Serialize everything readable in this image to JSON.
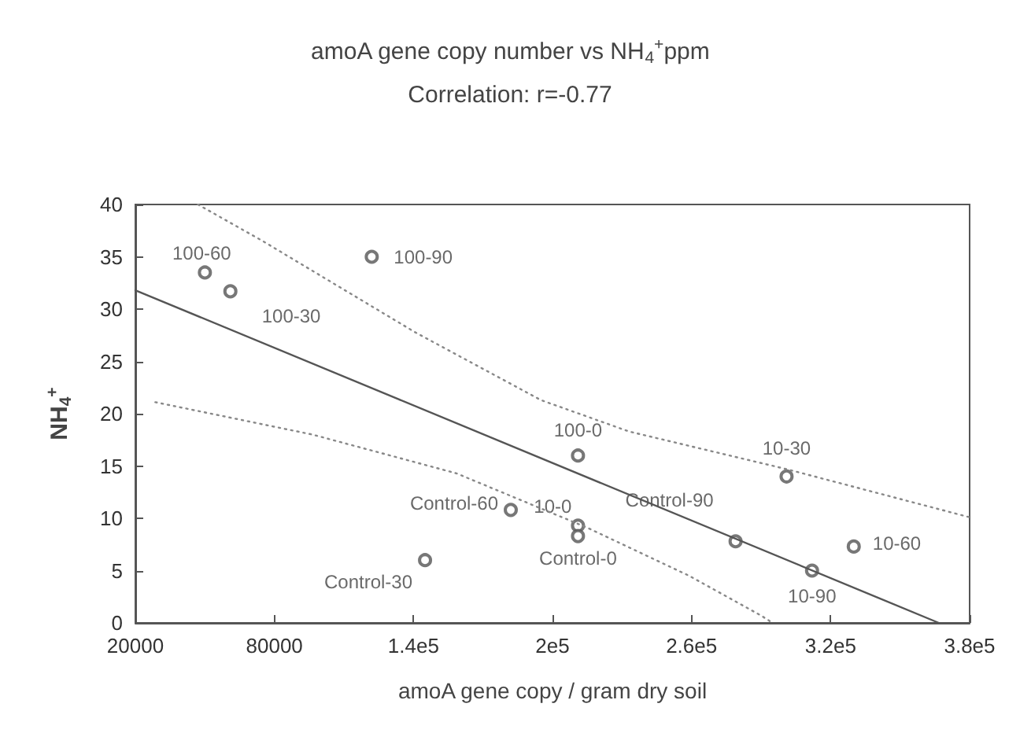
{
  "chart_data": {
    "type": "scatter",
    "title": "amoA gene copy number vs NH$_{4}$$^{+}$ppm",
    "subtitle": "Correlation: r=-0.77",
    "xlabel": "amoA gene copy / gram dry soil",
    "ylabel": "NH$_{4}$$^{+}$",
    "xlim": [
      20000,
      380000
    ],
    "xticks": [
      20000,
      80000,
      {
        "value": 140000,
        "label": "1.4e5"
      },
      {
        "value": 200000,
        "label": "2e5"
      },
      {
        "value": 260000,
        "label": "2.6e5"
      },
      {
        "value": 320000,
        "label": "3.2e5"
      },
      {
        "value": 380000,
        "label": "3.8e5"
      }
    ],
    "ylim": [
      0,
      40
    ],
    "yticks": [
      0,
      5,
      10,
      15,
      20,
      25,
      30,
      35,
      40
    ],
    "grid": false,
    "marker": "circle",
    "series": [
      {
        "color": "#555555",
        "x": [
          50000,
          61000,
          122000,
          182000,
          211000,
          211000,
          211000,
          301000,
          279000,
          312000,
          330000,
          145000
        ],
        "values": [
          33.5,
          31.7,
          35,
          10.8,
          16,
          9.3,
          8.3,
          14,
          7.8,
          5,
          7.3,
          6
        ]
      },
      {
        "type": "line",
        "color": "#555555",
        "line_style": "solid",
        "marker": "none",
        "x": [
          20000,
          366700
        ],
        "values": [
          31.8,
          0
        ]
      },
      {
        "type": "line",
        "color": "#888888",
        "line_style": "dotted",
        "marker": "none",
        "x": [
          47000,
          75000,
          140600,
          195000,
          233000,
          301000,
          380000
        ],
        "values": [
          40,
          36.5,
          27.8,
          21.3,
          18.3,
          14.7,
          10.1
        ]
      },
      {
        "type": "line",
        "color": "#888888",
        "line_style": "dotted",
        "marker": "none",
        "x": [
          28600,
          96500,
          158500,
          215000,
          259000,
          290000,
          295000
        ],
        "values": [
          21.1,
          18,
          14.3,
          9.1,
          4.5,
          0.7,
          0
        ]
      }
    ],
    "annotations": [
      {
        "text": "100-60",
        "x": 50000,
        "y": 33.5
      },
      {
        "text": "100-30",
        "x": 61000,
        "y": 31.7
      },
      {
        "text": "100-90",
        "x": 122000,
        "y": 35
      },
      {
        "text": "Control-60",
        "x": 182000,
        "y": 10.8
      },
      {
        "text": "100-0",
        "x": 211000,
        "y": 16
      },
      {
        "text": "10-0",
        "x": 211000,
        "y": 9.3
      },
      {
        "text": "Control-0",
        "x": 211000,
        "y": 8.3
      },
      {
        "text": "10-30",
        "x": 301000,
        "y": 14
      },
      {
        "text": "Control-90",
        "x": 279000,
        "y": 7.8
      },
      {
        "text": "10-90",
        "x": 312000,
        "y": 5
      },
      {
        "text": "10-60",
        "x": 330000,
        "y": 7.3
      },
      {
        "text": "Control-30",
        "x": 145000,
        "y": 6
      }
    ]
  }
}
